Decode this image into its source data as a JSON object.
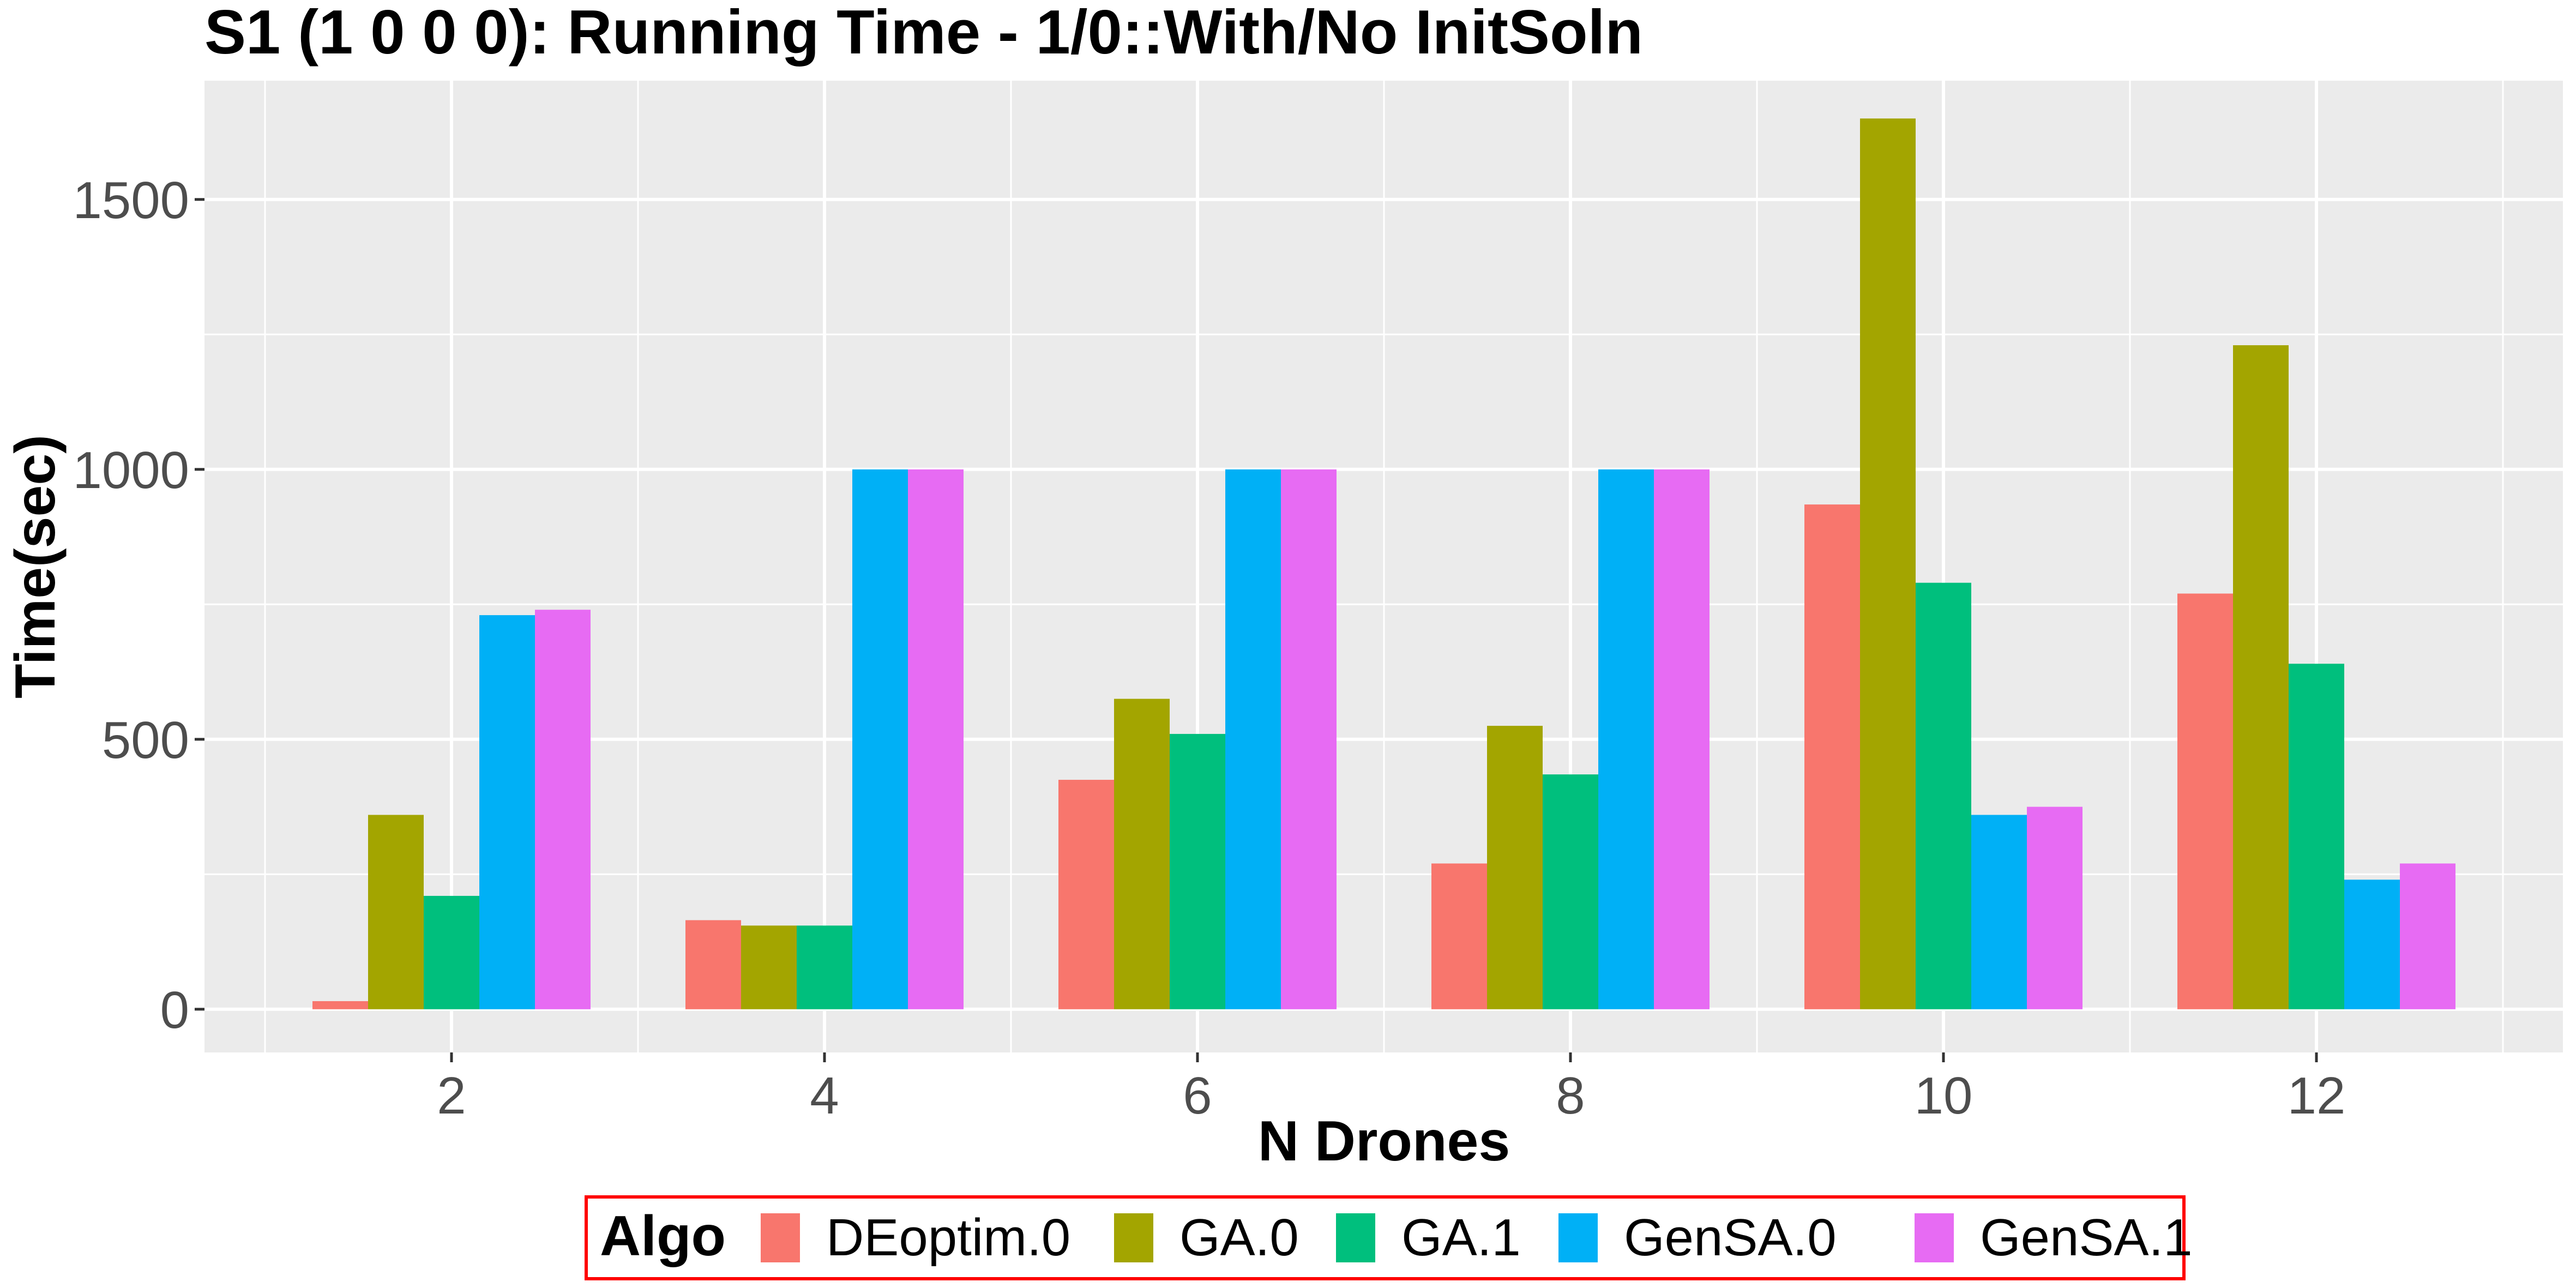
{
  "chart_data": {
    "type": "bar",
    "title": "S1 (1 0 0 0): Running Time - 1/0::With/No InitSoln",
    "xlabel": "N Drones",
    "ylabel": "Time(sec)",
    "categories": [
      "2",
      "4",
      "6",
      "8",
      "10",
      "12"
    ],
    "ylim": [
      -80,
      1720
    ],
    "yticks": [
      0,
      500,
      1000,
      1500
    ],
    "grid": true,
    "legend": {
      "title": "Algo",
      "position": "bottom",
      "border_color": "#ff0000"
    },
    "series": [
      {
        "name": "DEoptim.0",
        "color": "#F8766D",
        "values": [
          15,
          165,
          425,
          270,
          935,
          770
        ]
      },
      {
        "name": "GA.0",
        "color": "#A3A500",
        "values": [
          360,
          155,
          575,
          525,
          1650,
          1230
        ]
      },
      {
        "name": "GA.1",
        "color": "#00BF7D",
        "values": [
          210,
          155,
          510,
          435,
          790,
          640
        ]
      },
      {
        "name": "GenSA.0",
        "color": "#00B0F6",
        "values": [
          730,
          1000,
          1000,
          1000,
          360,
          240
        ]
      },
      {
        "name": "GenSA.1",
        "color": "#E76BF3",
        "values": [
          740,
          1000,
          1000,
          1000,
          375,
          270
        ]
      }
    ]
  }
}
